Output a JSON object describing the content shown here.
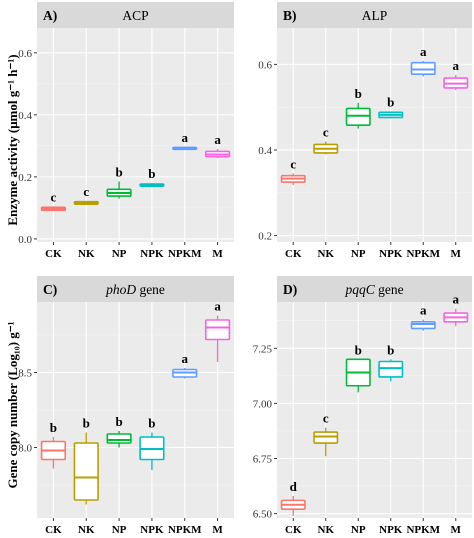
{
  "ylabels": {
    "top": "Enzyme activity (μmol g⁻¹ h⁻¹)",
    "bottom": "Gene copy number (Log₁₀) g⁻¹"
  },
  "chart_data": [
    {
      "type": "box",
      "panel_label": "A)",
      "title": "ACP",
      "categories": [
        "CK",
        "NK",
        "NP",
        "NPK",
        "NPKM",
        "M"
      ],
      "colors": [
        "#f8766d",
        "#b79f00",
        "#00ba38",
        "#00bfc4",
        "#619cff",
        "#f564e3"
      ],
      "ylim": [
        -0.01,
        0.68
      ],
      "yticks": [
        "0.0",
        "0.2",
        "0.4",
        "0.6"
      ],
      "ytick_values": [
        0,
        0.2,
        0.4,
        0.6
      ],
      "boxes": [
        {
          "min": 0.09,
          "q1": 0.092,
          "median": 0.097,
          "q3": 0.102,
          "max": 0.105
        },
        {
          "min": 0.11,
          "q1": 0.112,
          "median": 0.115,
          "q3": 0.12,
          "max": 0.122
        },
        {
          "min": 0.13,
          "q1": 0.138,
          "median": 0.148,
          "q3": 0.16,
          "max": 0.185
        },
        {
          "min": 0.168,
          "q1": 0.17,
          "median": 0.173,
          "q3": 0.177,
          "max": 0.18
        },
        {
          "min": 0.287,
          "q1": 0.289,
          "median": 0.292,
          "q3": 0.295,
          "max": 0.297
        },
        {
          "min": 0.26,
          "q1": 0.265,
          "median": 0.272,
          "q3": 0.282,
          "max": 0.29
        }
      ],
      "significance": [
        "c",
        "c",
        "b",
        "b",
        "a",
        "a"
      ]
    },
    {
      "type": "box",
      "panel_label": "B)",
      "title": "ALP",
      "categories": [
        "CK",
        "NK",
        "NP",
        "NPK",
        "NPKM",
        "M"
      ],
      "colors": [
        "#f8766d",
        "#b79f00",
        "#00ba38",
        "#00bfc4",
        "#619cff",
        "#f564e3"
      ],
      "ylim": [
        0.185,
        0.685
      ],
      "yticks": [
        "0.2",
        "0.4",
        "0.6"
      ],
      "ytick_values": [
        0.2,
        0.4,
        0.6
      ],
      "boxes": [
        {
          "min": 0.318,
          "q1": 0.325,
          "median": 0.333,
          "q3": 0.34,
          "max": 0.345
        },
        {
          "min": 0.39,
          "q1": 0.393,
          "median": 0.403,
          "q3": 0.413,
          "max": 0.42
        },
        {
          "min": 0.45,
          "q1": 0.458,
          "median": 0.48,
          "q3": 0.497,
          "max": 0.51
        },
        {
          "min": 0.474,
          "q1": 0.476,
          "median": 0.482,
          "q3": 0.488,
          "max": 0.49
        },
        {
          "min": 0.572,
          "q1": 0.577,
          "median": 0.588,
          "q3": 0.604,
          "max": 0.608
        },
        {
          "min": 0.54,
          "q1": 0.545,
          "median": 0.555,
          "q3": 0.568,
          "max": 0.575
        }
      ],
      "significance": [
        "c",
        "c",
        "b",
        "b",
        "a",
        "a"
      ]
    },
    {
      "type": "box",
      "panel_label": "C)",
      "title": "phoD",
      "title_suffix": " gene",
      "categories": [
        "CK",
        "NK",
        "NP",
        "NPK",
        "NPKM",
        "M"
      ],
      "colors": [
        "#f8766d",
        "#b79f00",
        "#00ba38",
        "#00bfc4",
        "#619cff",
        "#f564e3"
      ],
      "ylim": [
        7.53,
        8.97
      ],
      "yticks": [
        "8.0",
        "8.5"
      ],
      "ytick_values": [
        8.0,
        8.5
      ],
      "boxes": [
        {
          "min": 7.86,
          "q1": 7.92,
          "median": 7.98,
          "q3": 8.04,
          "max": 8.07
        },
        {
          "min": 7.62,
          "q1": 7.65,
          "median": 7.8,
          "q3": 8.03,
          "max": 8.1
        },
        {
          "min": 8.0,
          "q1": 8.03,
          "median": 8.05,
          "q3": 8.09,
          "max": 8.11
        },
        {
          "min": 7.85,
          "q1": 7.92,
          "median": 7.99,
          "q3": 8.07,
          "max": 8.1
        },
        {
          "min": 8.46,
          "q1": 8.47,
          "median": 8.5,
          "q3": 8.52,
          "max": 8.53
        },
        {
          "min": 8.57,
          "q1": 8.72,
          "median": 8.8,
          "q3": 8.85,
          "max": 8.88
        }
      ],
      "significance": [
        "b",
        "b",
        "b",
        "b",
        "a",
        "a"
      ]
    },
    {
      "type": "box",
      "panel_label": "D)",
      "title": "pqqC",
      "title_suffix": " gene",
      "categories": [
        "CK",
        "NK",
        "NP",
        "NPK",
        "NPKM",
        "M"
      ],
      "colors": [
        "#f8766d",
        "#b79f00",
        "#00ba38",
        "#00bfc4",
        "#619cff",
        "#f564e3"
      ],
      "ylim": [
        6.48,
        7.46
      ],
      "yticks": [
        "6.50",
        "6.75",
        "7.00",
        "7.25"
      ],
      "ytick_values": [
        6.5,
        6.75,
        7.0,
        7.25
      ],
      "boxes": [
        {
          "min": 6.49,
          "q1": 6.52,
          "median": 6.54,
          "q3": 6.56,
          "max": 6.58
        },
        {
          "min": 6.76,
          "q1": 6.82,
          "median": 6.85,
          "q3": 6.87,
          "max": 6.89
        },
        {
          "min": 7.05,
          "q1": 7.08,
          "median": 7.14,
          "q3": 7.2,
          "max": 7.2
        },
        {
          "min": 7.1,
          "q1": 7.12,
          "median": 7.16,
          "q3": 7.19,
          "max": 7.2
        },
        {
          "min": 7.33,
          "q1": 7.34,
          "median": 7.36,
          "q3": 7.37,
          "max": 7.38
        },
        {
          "min": 7.35,
          "q1": 7.37,
          "median": 7.39,
          "q3": 7.41,
          "max": 7.43
        }
      ],
      "significance": [
        "d",
        "c",
        "b",
        "b",
        "a",
        "a"
      ]
    }
  ]
}
